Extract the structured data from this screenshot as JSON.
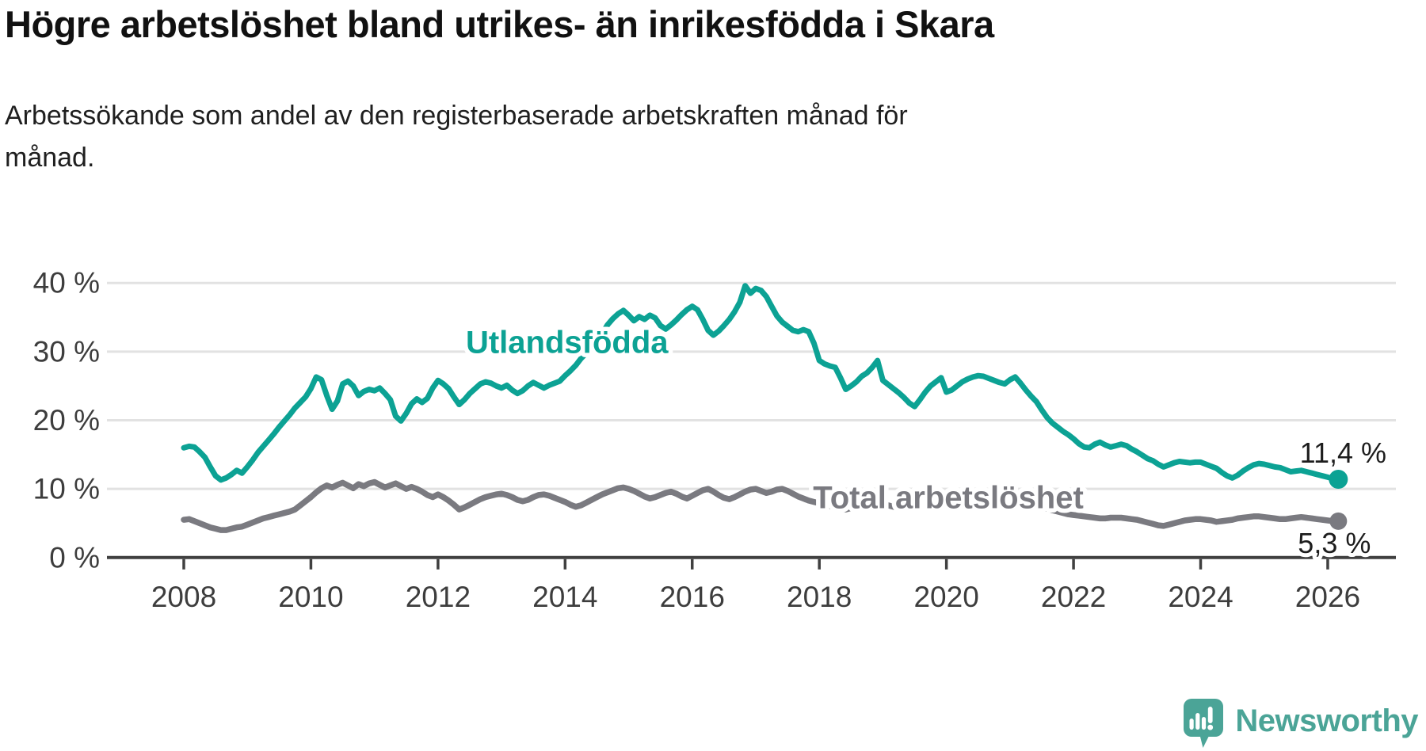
{
  "chart_data": {
    "type": "line",
    "title": "Högre arbetslöshet bland utrikes- än inrikesfödda i Skara",
    "subtitle_lines": [
      "Arbetssökande som andel av den registerbaserade arbetskraften månad för",
      "månad."
    ],
    "xlabel": "",
    "ylabel": "",
    "grid": true,
    "legend_position": "inline-labels",
    "x": {
      "unit": "month",
      "start_year": 2008,
      "start_month": 1,
      "end_year": 2026,
      "end_month": 3,
      "tick_years": [
        2008,
        2010,
        2012,
        2014,
        2016,
        2018,
        2020,
        2022,
        2024,
        2026
      ]
    },
    "y": {
      "max": 42,
      "ticks": [
        {
          "value": 0,
          "label": "0 %"
        },
        {
          "value": 10,
          "label": "10 %"
        },
        {
          "value": 20,
          "label": "20 %"
        },
        {
          "value": 30,
          "label": "30 %"
        },
        {
          "value": 40,
          "label": "40 %"
        }
      ]
    },
    "series": [
      {
        "name": "Utlandsfödda",
        "color": "#0CA294",
        "end_value": 11.4,
        "end_label": "11,4 %",
        "end_label_offset": {
          "dx": 6,
          "dy": -21
        },
        "inline_label": {
          "year": 2014.03,
          "pct": 31.3
        },
        "values": [
          16.0,
          16.2,
          16.1,
          15.4,
          14.6,
          13.2,
          11.9,
          11.3,
          11.6,
          12.1,
          12.7,
          12.3,
          13.2,
          14.2,
          15.3,
          16.2,
          17.1,
          18.0,
          19.0,
          19.9,
          20.8,
          21.8,
          22.6,
          23.4,
          24.6,
          26.3,
          25.9,
          23.6,
          21.6,
          22.8,
          25.3,
          25.7,
          25.0,
          23.6,
          24.2,
          24.5,
          24.3,
          24.7,
          23.9,
          23.0,
          20.6,
          19.9,
          21.0,
          22.4,
          23.1,
          22.6,
          23.2,
          24.7,
          25.8,
          25.3,
          24.6,
          23.4,
          22.3,
          23.0,
          23.9,
          24.6,
          25.3,
          25.6,
          25.4,
          25.0,
          24.7,
          25.1,
          24.4,
          23.9,
          24.3,
          25.0,
          25.5,
          25.1,
          24.7,
          25.1,
          25.4,
          25.7,
          26.5,
          27.2,
          28.0,
          29.0,
          29.8,
          30.6,
          31.5,
          32.6,
          33.9,
          34.8,
          35.5,
          36.0,
          35.3,
          34.5,
          35.1,
          34.7,
          35.3,
          34.9,
          33.8,
          33.3,
          33.9,
          34.6,
          35.4,
          36.1,
          36.6,
          36.1,
          34.7,
          33.1,
          32.4,
          33.0,
          33.8,
          34.7,
          35.8,
          37.2,
          39.6,
          38.5,
          39.2,
          38.9,
          38.0,
          36.6,
          35.2,
          34.3,
          33.7,
          33.1,
          32.9,
          33.2,
          32.9,
          31.2,
          28.7,
          28.2,
          27.9,
          27.7,
          26.2,
          24.5,
          25.0,
          25.6,
          26.4,
          26.9,
          27.7,
          28.7,
          25.8,
          25.2,
          24.6,
          24.0,
          23.3,
          22.5,
          22.0,
          23.0,
          24.1,
          25.0,
          25.6,
          26.2,
          24.1,
          24.4,
          25.0,
          25.6,
          26.0,
          26.3,
          26.5,
          26.4,
          26.1,
          25.8,
          25.5,
          25.3,
          25.9,
          26.3,
          25.4,
          24.4,
          23.5,
          22.7,
          21.5,
          20.4,
          19.6,
          19.0,
          18.4,
          17.9,
          17.3,
          16.6,
          16.1,
          16.0,
          16.5,
          16.8,
          16.4,
          16.1,
          16.3,
          16.5,
          16.3,
          15.8,
          15.4,
          14.9,
          14.4,
          14.1,
          13.6,
          13.2,
          13.5,
          13.8,
          14.0,
          13.9,
          13.8,
          13.9,
          13.9,
          13.6,
          13.3,
          13.0,
          12.4,
          11.9,
          11.6,
          12.0,
          12.6,
          13.1,
          13.5,
          13.7,
          13.6,
          13.4,
          13.2,
          13.1,
          12.8,
          12.5,
          12.6,
          12.7,
          12.5,
          12.3,
          12.1,
          11.9,
          11.7,
          11.5,
          11.4
        ]
      },
      {
        "name": "Total arbetslöshet",
        "color": "#7A7A80",
        "end_value": 5.3,
        "end_label": "5,3 %",
        "end_label_offset": {
          "dx": -5,
          "dy": 40
        },
        "inline_label": {
          "year": 2020.03,
          "pct": 8.7
        },
        "values": [
          5.5,
          5.6,
          5.3,
          5.0,
          4.7,
          4.4,
          4.2,
          4.0,
          4.0,
          4.2,
          4.4,
          4.5,
          4.8,
          5.1,
          5.4,
          5.7,
          5.9,
          6.1,
          6.3,
          6.5,
          6.7,
          7.0,
          7.6,
          8.2,
          8.8,
          9.5,
          10.1,
          10.5,
          10.2,
          10.6,
          10.9,
          10.5,
          10.1,
          10.7,
          10.4,
          10.8,
          11.0,
          10.6,
          10.2,
          10.5,
          10.8,
          10.4,
          10.0,
          10.3,
          10.0,
          9.6,
          9.1,
          8.8,
          9.2,
          8.8,
          8.3,
          7.7,
          7.0,
          7.3,
          7.7,
          8.1,
          8.5,
          8.8,
          9.0,
          9.2,
          9.3,
          9.1,
          8.8,
          8.4,
          8.2,
          8.4,
          8.8,
          9.1,
          9.2,
          9.0,
          8.7,
          8.4,
          8.1,
          7.7,
          7.4,
          7.6,
          8.0,
          8.4,
          8.8,
          9.2,
          9.5,
          9.8,
          10.1,
          10.2,
          10.0,
          9.7,
          9.3,
          8.9,
          8.6,
          8.8,
          9.1,
          9.4,
          9.6,
          9.3,
          8.9,
          8.6,
          9.0,
          9.4,
          9.8,
          10.0,
          9.6,
          9.1,
          8.7,
          8.5,
          8.8,
          9.2,
          9.6,
          9.9,
          10.0,
          9.7,
          9.4,
          9.6,
          9.9,
          10.0,
          9.7,
          9.3,
          8.9,
          8.6,
          8.3,
          8.1,
          7.9,
          7.7,
          7.5,
          7.3,
          7.1,
          7.0,
          7.2,
          7.4,
          7.6,
          7.7,
          7.9,
          8.0,
          7.8,
          7.6,
          7.4,
          7.2,
          7.1,
          7.3,
          7.5,
          7.7,
          7.8,
          8.0,
          8.1,
          8.2,
          8.0,
          8.2,
          8.6,
          9.0,
          9.4,
          9.6,
          9.7,
          9.5,
          9.3,
          9.1,
          9.0,
          8.9,
          8.8,
          8.7,
          8.5,
          8.2,
          7.9,
          7.6,
          7.3,
          7.1,
          6.9,
          6.7,
          6.5,
          6.3,
          6.2,
          6.1,
          6.0,
          5.9,
          5.8,
          5.7,
          5.7,
          5.8,
          5.8,
          5.8,
          5.7,
          5.6,
          5.5,
          5.3,
          5.1,
          4.9,
          4.7,
          4.6,
          4.8,
          5.0,
          5.2,
          5.4,
          5.5,
          5.6,
          5.6,
          5.5,
          5.4,
          5.2,
          5.3,
          5.4,
          5.5,
          5.7,
          5.8,
          5.9,
          6.0,
          6.0,
          5.9,
          5.8,
          5.7,
          5.6,
          5.6,
          5.7,
          5.8,
          5.9,
          5.8,
          5.7,
          5.6,
          5.5,
          5.4,
          5.3,
          5.3
        ]
      }
    ]
  },
  "branding": {
    "name": "Newsworthy",
    "logo_icon": "newsworthy-speech-bubble-chart-icon",
    "color": "#4BA497"
  },
  "colors": {
    "background": "#ffffff",
    "grid": "#e2e2e2",
    "axis": "#404040",
    "title_text": "#111111",
    "subtitle_text": "#1f1f1f",
    "tick_text": "#3d3d3d",
    "value_label_text": "#1d1d1d"
  }
}
